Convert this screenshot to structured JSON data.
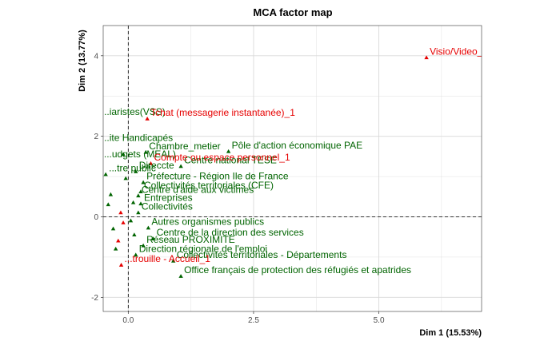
{
  "chart_data": {
    "type": "scatter",
    "title": "MCA factor map",
    "xlabel": "Dim 1 (15.53%)",
    "ylabel": "Dim 2 (13.77%)",
    "xlim": [
      -0.5,
      7.05
    ],
    "ylim": [
      -2.35,
      4.75
    ],
    "xticks": [
      0,
      2.5,
      5
    ],
    "xtick_labels": [
      "0.0",
      "2.5",
      "5.0"
    ],
    "yticks": [
      -2,
      0,
      2,
      4
    ],
    "ytick_labels": [
      "-2",
      "0",
      "2",
      "4"
    ],
    "grid": true,
    "ref_lines": {
      "x": 0,
      "y": 0,
      "style": "dashed"
    },
    "colors": {
      "active": "#e60000",
      "supplementary": "#006400",
      "grid": "#d9d9d9",
      "axes_border": "#333333"
    },
    "series": [
      {
        "group": "active",
        "points": [
          {
            "x": 5.95,
            "y": 3.95,
            "label": "Visio/Video_1"
          },
          {
            "x": 0.38,
            "y": 2.43,
            "label": "Tchat (messagerie instantanée)_1"
          },
          {
            "x": 0.45,
            "y": 1.32,
            "label": "Compte ou espace personnel_1"
          },
          {
            "x": -0.1,
            "y": -0.15,
            "label": ""
          },
          {
            "x": -0.15,
            "y": 0.1,
            "label": ""
          },
          {
            "x": -0.2,
            "y": -0.6,
            "label": ""
          },
          {
            "x": -0.14,
            "y": -1.2,
            "label": "...trouille - Accueil_1"
          }
        ]
      },
      {
        "group": "supplementary",
        "points": [
          {
            "x": 0.35,
            "y": 1.6,
            "label": "Chambre_metier"
          },
          {
            "x": 2.0,
            "y": 1.62,
            "label": "Pôle d'action économique PAE"
          },
          {
            "x": 1.05,
            "y": 1.25,
            "label": "Centre national TESE"
          },
          {
            "x": 0.15,
            "y": 1.12,
            "label": "Direccte"
          },
          {
            "x": 0.3,
            "y": 0.85,
            "label": "Préfecture - Région Ile de France"
          },
          {
            "x": 0.25,
            "y": 0.62,
            "label": "Collectivités territoriales (CFE)"
          },
          {
            "x": 0.2,
            "y": 0.52,
            "label": "Centre d'aide aux victimes"
          },
          {
            "x": 0.25,
            "y": 0.32,
            "label": "Entreprises"
          },
          {
            "x": 0.2,
            "y": 0.1,
            "label": "Collectivités"
          },
          {
            "x": 0.4,
            "y": -0.28,
            "label": "Autres organismes publics"
          },
          {
            "x": 0.5,
            "y": -0.55,
            "label": "Centre de la direction des services"
          },
          {
            "x": 0.15,
            "y": -0.95,
            "label": "Direction régionale de l'emploi"
          },
          {
            "x": 0.9,
            "y": -1.1,
            "label": "Collectivités territoriales - Départements"
          },
          {
            "x": 1.05,
            "y": -1.48,
            "label": "Office français de protection des réfugiés et apatrides"
          },
          {
            "x": 0.3,
            "y": -0.72,
            "label": "Réseau PROXIMITE"
          },
          {
            "x": -0.6,
            "y": 2.45,
            "label": "...iaristes(VSS)"
          },
          {
            "x": -0.6,
            "y": 1.8,
            "label": "...ite Handicapés"
          },
          {
            "x": -0.55,
            "y": 1.4,
            "label": "...udgets (MEAL)"
          },
          {
            "x": -0.45,
            "y": 1.05,
            "label": "...tre public"
          },
          {
            "x": -0.35,
            "y": 0.55,
            "label": ""
          },
          {
            "x": -0.4,
            "y": 0.3,
            "label": ""
          },
          {
            "x": -0.3,
            "y": -0.3,
            "label": ""
          },
          {
            "x": -0.25,
            "y": -0.8,
            "label": ""
          },
          {
            "x": -0.1,
            "y": 1.55,
            "label": ""
          },
          {
            "x": -0.05,
            "y": 0.95,
            "label": ""
          },
          {
            "x": 0.05,
            "y": -0.1,
            "label": ""
          },
          {
            "x": 0.1,
            "y": 0.35,
            "label": ""
          },
          {
            "x": 0.12,
            "y": -0.45,
            "label": ""
          }
        ]
      }
    ]
  }
}
